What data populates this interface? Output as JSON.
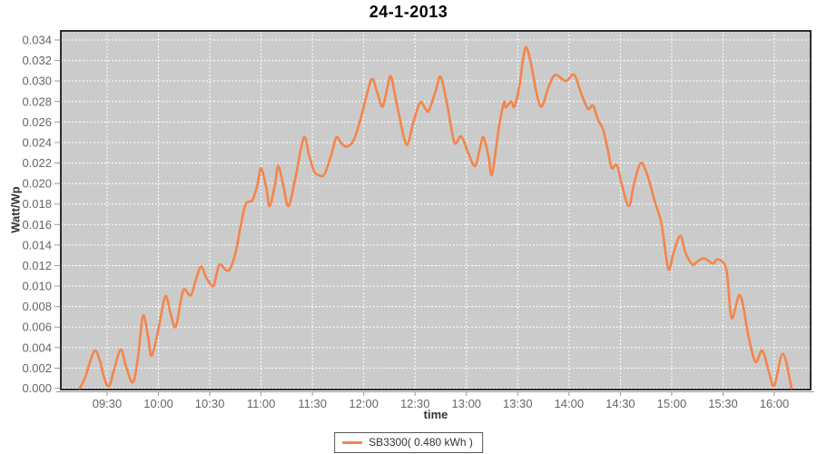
{
  "window": {
    "title": "24-1-2013"
  },
  "colors": {
    "series": "#F4854A",
    "plot_background": "#CBCBCB",
    "gridline": "#FFFFFF",
    "plot_border": "#000000",
    "axis_line": "#999999",
    "tick_label": "#666666",
    "outer_background": "#FFFFFF"
  },
  "legend": {
    "label": "SB3300( 0.480 kWh )"
  },
  "chart_data": {
    "type": "line",
    "title": "24-1-2013",
    "xlabel": "time",
    "ylabel": "Watt/Wp",
    "grid": true,
    "legend_position": "bottom",
    "ylim": [
      0,
      0.034
    ],
    "y_tick_step": 0.002,
    "y_ticks": [
      "0.000",
      "0.002",
      "0.004",
      "0.006",
      "0.008",
      "0.010",
      "0.012",
      "0.014",
      "0.016",
      "0.018",
      "0.020",
      "0.022",
      "0.024",
      "0.026",
      "0.028",
      "0.030",
      "0.032",
      "0.034"
    ],
    "x_ticks": [
      "09:30",
      "10:00",
      "10:30",
      "11:00",
      "11:30",
      "12:00",
      "12:30",
      "13:00",
      "13:30",
      "14:00",
      "14:30",
      "15:00",
      "15:30",
      "16:00"
    ],
    "series": [
      {
        "name": "SB3300( 0.480 kWh )",
        "color": "#F4854A",
        "points": [
          [
            "09:14",
            0.0
          ],
          [
            "09:17",
            0.001
          ],
          [
            "09:20",
            0.0026
          ],
          [
            "09:23",
            0.0037
          ],
          [
            "09:26",
            0.0026
          ],
          [
            "09:28",
            0.0012
          ],
          [
            "09:31",
            0.0002
          ],
          [
            "09:34",
            0.0018
          ],
          [
            "09:38",
            0.0038
          ],
          [
            "09:41",
            0.0022
          ],
          [
            "09:45",
            0.0006
          ],
          [
            "09:48",
            0.003
          ],
          [
            "09:51",
            0.0071
          ],
          [
            "09:54",
            0.005
          ],
          [
            "09:56",
            0.0032
          ],
          [
            "10:00",
            0.0058
          ],
          [
            "10:04",
            0.009
          ],
          [
            "10:07",
            0.0074
          ],
          [
            "10:10",
            0.006
          ],
          [
            "10:13",
            0.0085
          ],
          [
            "10:15",
            0.0097
          ],
          [
            "10:19",
            0.0091
          ],
          [
            "10:22",
            0.0107
          ],
          [
            "10:25",
            0.0119
          ],
          [
            "10:28",
            0.0108
          ],
          [
            "10:32",
            0.01
          ],
          [
            "10:34",
            0.0112
          ],
          [
            "10:36",
            0.0121
          ],
          [
            "10:41",
            0.0115
          ],
          [
            "10:45",
            0.0132
          ],
          [
            "10:48",
            0.0158
          ],
          [
            "10:51",
            0.018
          ],
          [
            "10:55",
            0.0184
          ],
          [
            "10:58",
            0.02
          ],
          [
            "11:00",
            0.0215
          ],
          [
            "11:03",
            0.0196
          ],
          [
            "11:05",
            0.0178
          ],
          [
            "11:08",
            0.0198
          ],
          [
            "11:10",
            0.0217
          ],
          [
            "11:13",
            0.0198
          ],
          [
            "11:16",
            0.0178
          ],
          [
            "11:20",
            0.0205
          ],
          [
            "11:25",
            0.0245
          ],
          [
            "11:28",
            0.0228
          ],
          [
            "11:31",
            0.0212
          ],
          [
            "11:34",
            0.0208
          ],
          [
            "11:37",
            0.0209
          ],
          [
            "11:41",
            0.0228
          ],
          [
            "11:44",
            0.0245
          ],
          [
            "11:47",
            0.0239
          ],
          [
            "11:50",
            0.0236
          ],
          [
            "11:54",
            0.0242
          ],
          [
            "11:58",
            0.0262
          ],
          [
            "12:02",
            0.0288
          ],
          [
            "12:05",
            0.0302
          ],
          [
            "12:08",
            0.0288
          ],
          [
            "12:11",
            0.0275
          ],
          [
            "12:14",
            0.0295
          ],
          [
            "12:16",
            0.0304
          ],
          [
            "12:20",
            0.0272
          ],
          [
            "12:25",
            0.0238
          ],
          [
            "12:29",
            0.026
          ],
          [
            "12:33",
            0.0279
          ],
          [
            "12:36",
            0.0273
          ],
          [
            "12:38",
            0.0271
          ],
          [
            "12:42",
            0.029
          ],
          [
            "12:45",
            0.0304
          ],
          [
            "12:49",
            0.0275
          ],
          [
            "12:53",
            0.024
          ],
          [
            "12:57",
            0.0246
          ],
          [
            "13:01",
            0.023
          ],
          [
            "13:05",
            0.0217
          ],
          [
            "13:08",
            0.0235
          ],
          [
            "13:10",
            0.0245
          ],
          [
            "13:13",
            0.0226
          ],
          [
            "13:15",
            0.0209
          ],
          [
            "13:19",
            0.0255
          ],
          [
            "13:22",
            0.0279
          ],
          [
            "13:23",
            0.0274
          ],
          [
            "13:26",
            0.028
          ],
          [
            "13:28",
            0.0275
          ],
          [
            "13:31",
            0.0295
          ],
          [
            "13:33",
            0.032
          ],
          [
            "13:35",
            0.0333
          ],
          [
            "13:38",
            0.0315
          ],
          [
            "13:41",
            0.0288
          ],
          [
            "13:44",
            0.0275
          ],
          [
            "13:48",
            0.0294
          ],
          [
            "13:52",
            0.0306
          ],
          [
            "13:58",
            0.03
          ],
          [
            "14:03",
            0.0306
          ],
          [
            "14:07",
            0.0288
          ],
          [
            "14:11",
            0.0273
          ],
          [
            "14:14",
            0.0276
          ],
          [
            "14:17",
            0.0262
          ],
          [
            "14:20",
            0.0252
          ],
          [
            "14:23",
            0.023
          ],
          [
            "14:25",
            0.0215
          ],
          [
            "14:28",
            0.0218
          ],
          [
            "14:31",
            0.0198
          ],
          [
            "14:35",
            0.0178
          ],
          [
            "14:38",
            0.02
          ],
          [
            "14:42",
            0.022
          ],
          [
            "14:46",
            0.0207
          ],
          [
            "14:50",
            0.0183
          ],
          [
            "14:54",
            0.0161
          ],
          [
            "14:58",
            0.0117
          ],
          [
            "15:01",
            0.0132
          ],
          [
            "15:05",
            0.0149
          ],
          [
            "15:08",
            0.0133
          ],
          [
            "15:12",
            0.0121
          ],
          [
            "15:15",
            0.0124
          ],
          [
            "15:19",
            0.0127
          ],
          [
            "15:24",
            0.0122
          ],
          [
            "15:27",
            0.0126
          ],
          [
            "15:32",
            0.0116
          ],
          [
            "15:35",
            0.0069
          ],
          [
            "15:40",
            0.0091
          ],
          [
            "15:45",
            0.005
          ],
          [
            "15:49",
            0.0026
          ],
          [
            "15:53",
            0.0037
          ],
          [
            "15:57",
            0.0015
          ],
          [
            "16:00",
            0.0003
          ],
          [
            "16:05",
            0.0034
          ],
          [
            "16:10",
            0.0
          ]
        ]
      }
    ]
  }
}
